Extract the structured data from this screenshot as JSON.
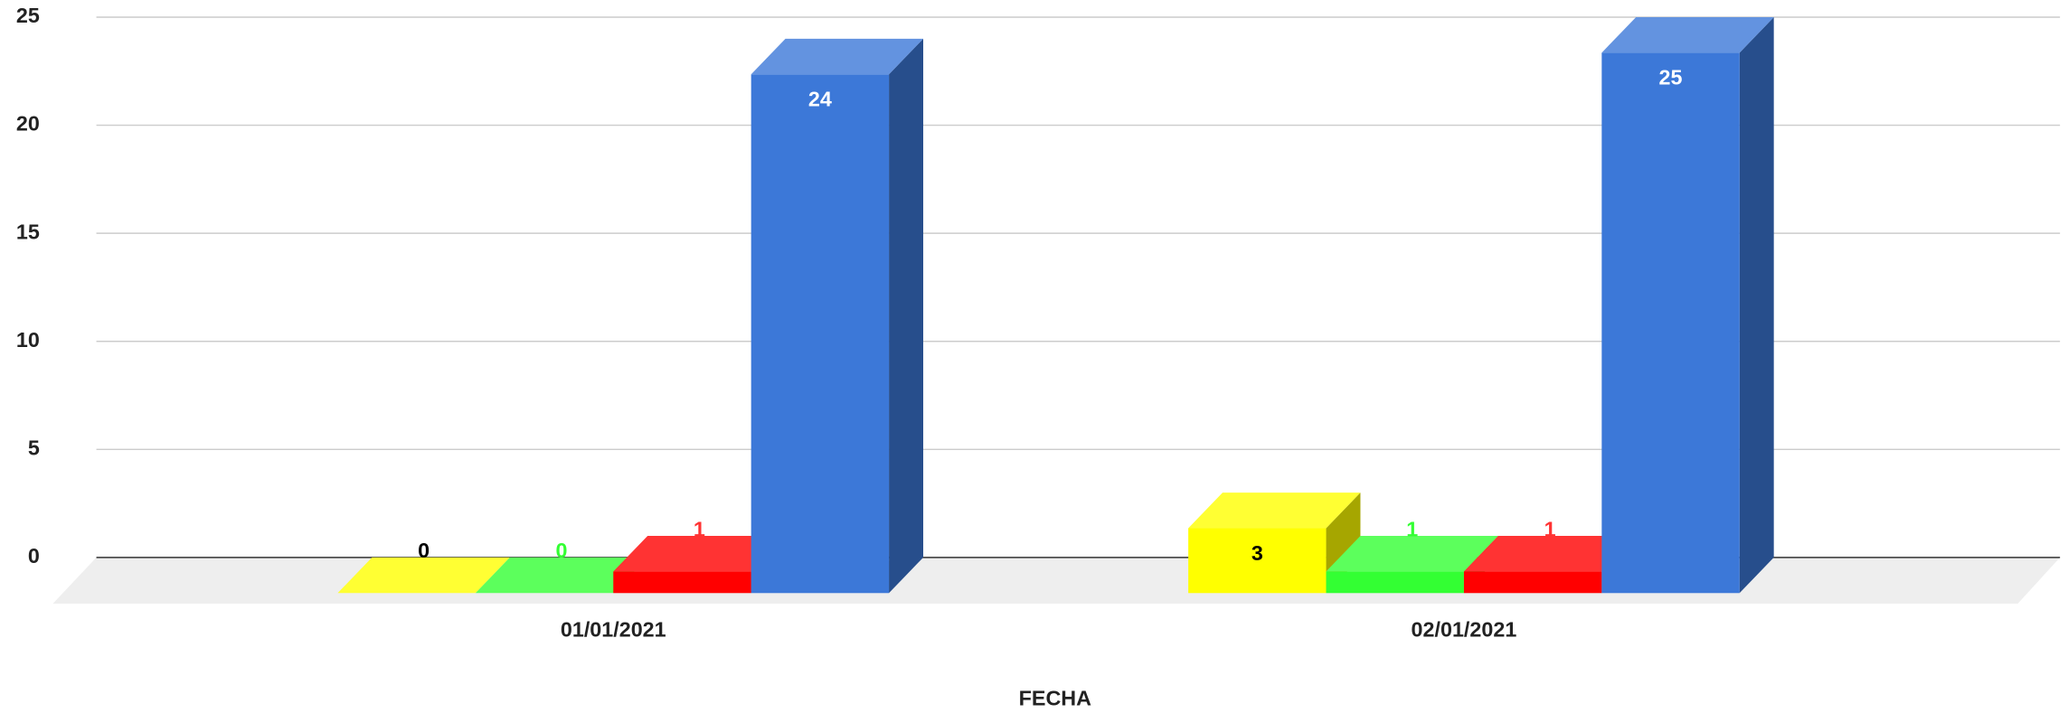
{
  "chart_data": {
    "type": "bar3d",
    "x_label": "FECHA",
    "categories": [
      "01/01/2021",
      "02/01/2021"
    ],
    "series": [
      {
        "color": "#ffff00",
        "label_color": "#000000",
        "values": [
          0,
          3
        ]
      },
      {
        "color": "#33ff33",
        "label_color": "#33ff33",
        "values": [
          0,
          1
        ]
      },
      {
        "color": "#ff0000",
        "label_color": "#ff3333",
        "values": [
          1,
          1
        ]
      },
      {
        "color": "#3c78d8",
        "label_color": "#ffffff",
        "values": [
          24,
          25
        ]
      }
    ],
    "ylim": [
      0,
      25
    ],
    "yticks": [
      0,
      5,
      10,
      15,
      20,
      25
    ],
    "grid": true
  }
}
